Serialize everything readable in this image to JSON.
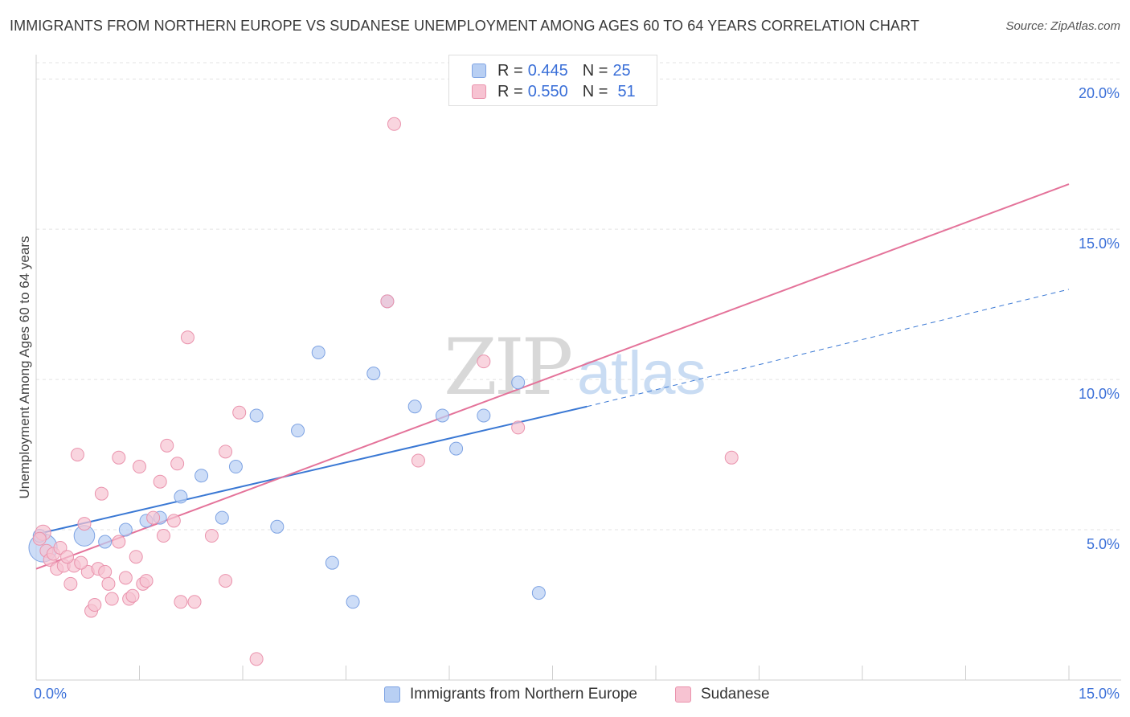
{
  "title": "IMMIGRANTS FROM NORTHERN EUROPE VS SUDANESE UNEMPLOYMENT AMONG AGES 60 TO 64 YEARS CORRELATION CHART",
  "source": "Source: ZipAtlas.com",
  "watermark": {
    "zip": "ZIP",
    "atlas": "atlas"
  },
  "colors": {
    "blue_fill": "#b8cff3",
    "blue_stroke": "#7ea3e3",
    "blue_line": "#3a78d4",
    "pink_fill": "#f7c3d2",
    "pink_stroke": "#ea93ad",
    "pink_line": "#e4739a",
    "tick_label": "#3a6fd8"
  },
  "legend": {
    "rows": [
      {
        "r_label": "R = ",
        "r_value": "0.445",
        "n_label": "N = ",
        "n_value": "25"
      },
      {
        "r_label": "R = ",
        "r_value": "0.550",
        "n_label": "N = ",
        "n_value": "51"
      }
    ]
  },
  "bottom_legend": {
    "series1": "Immigrants from Northern Europe",
    "series2": "Sudanese"
  },
  "chart_data": {
    "type": "scatter",
    "title": "IMMIGRANTS FROM NORTHERN EUROPE VS SUDANESE UNEMPLOYMENT AMONG AGES 60 TO 64 YEARS CORRELATION CHART",
    "xlabel": "",
    "ylabel": "Unemployment Among Ages 60 to 64 years",
    "xlim": [
      0,
      15
    ],
    "ylim": [
      0,
      20.5
    ],
    "x_tick_labels": [
      "0.0%",
      "15.0%"
    ],
    "x_tick_values": [
      0,
      15
    ],
    "y_tick_labels": [
      "5.0%",
      "10.0%",
      "15.0%",
      "20.0%"
    ],
    "y_tick_values": [
      5,
      10,
      15,
      20
    ],
    "grid": true,
    "series": [
      {
        "name": "Immigrants from Northern Europe",
        "R": 0.445,
        "N": 25,
        "points": [
          [
            0.1,
            4.4,
            2.2
          ],
          [
            0.7,
            4.8,
            1.6
          ],
          [
            1.0,
            4.6,
            1
          ],
          [
            1.3,
            5.0,
            1
          ],
          [
            1.6,
            5.3,
            1
          ],
          [
            1.8,
            5.4,
            1
          ],
          [
            2.1,
            6.1,
            1
          ],
          [
            2.4,
            6.8,
            1
          ],
          [
            2.7,
            5.4,
            1
          ],
          [
            2.9,
            7.1,
            1
          ],
          [
            3.2,
            8.8,
            1
          ],
          [
            3.5,
            5.1,
            1
          ],
          [
            3.8,
            8.3,
            1
          ],
          [
            4.1,
            10.9,
            1
          ],
          [
            4.3,
            3.9,
            1
          ],
          [
            4.6,
            2.6,
            1
          ],
          [
            4.9,
            10.2,
            1
          ],
          [
            5.1,
            12.6,
            1
          ],
          [
            5.5,
            9.1,
            1
          ],
          [
            5.9,
            8.8,
            1
          ],
          [
            6.1,
            7.7,
            1
          ],
          [
            6.5,
            8.8,
            1
          ],
          [
            7.0,
            9.9,
            1
          ],
          [
            7.3,
            2.9,
            1
          ],
          [
            0.05,
            4.8,
            1
          ]
        ],
        "trend": {
          "x1": 0,
          "y1": 4.85,
          "x2": 8.0,
          "y2": 9.1,
          "dash_to_x": 15,
          "dash_to_y": 13.0
        }
      },
      {
        "name": "Sudanese",
        "R": 0.55,
        "N": 51,
        "points": [
          [
            0.1,
            4.9,
            1.2
          ],
          [
            0.15,
            4.3,
            1
          ],
          [
            0.2,
            4.0,
            1
          ],
          [
            0.25,
            4.2,
            1
          ],
          [
            0.3,
            3.7,
            1
          ],
          [
            0.35,
            4.4,
            1
          ],
          [
            0.4,
            3.8,
            1
          ],
          [
            0.5,
            3.2,
            1
          ],
          [
            0.55,
            3.8,
            1
          ],
          [
            0.6,
            7.5,
            1
          ],
          [
            0.7,
            5.2,
            1
          ],
          [
            0.75,
            3.6,
            1
          ],
          [
            0.8,
            2.3,
            1
          ],
          [
            0.85,
            2.5,
            1
          ],
          [
            0.9,
            3.7,
            1
          ],
          [
            0.95,
            6.2,
            1
          ],
          [
            1.0,
            3.6,
            1
          ],
          [
            1.05,
            3.2,
            1
          ],
          [
            1.1,
            2.7,
            1
          ],
          [
            1.2,
            4.6,
            1
          ],
          [
            1.2,
            7.4,
            1
          ],
          [
            1.3,
            3.4,
            1
          ],
          [
            1.35,
            2.7,
            1
          ],
          [
            1.4,
            2.8,
            1
          ],
          [
            1.45,
            4.1,
            1
          ],
          [
            1.5,
            7.1,
            1
          ],
          [
            1.55,
            3.2,
            1
          ],
          [
            1.6,
            3.3,
            1
          ],
          [
            1.7,
            5.4,
            1
          ],
          [
            1.8,
            6.6,
            1
          ],
          [
            1.85,
            4.8,
            1
          ],
          [
            1.9,
            7.8,
            1
          ],
          [
            2.0,
            5.3,
            1
          ],
          [
            2.05,
            7.2,
            1
          ],
          [
            2.1,
            2.6,
            1
          ],
          [
            2.2,
            11.4,
            1
          ],
          [
            2.3,
            2.6,
            1
          ],
          [
            2.55,
            4.8,
            1
          ],
          [
            2.75,
            7.6,
            1
          ],
          [
            2.75,
            3.3,
            1
          ],
          [
            2.95,
            8.9,
            1
          ],
          [
            3.2,
            0.7,
            1
          ],
          [
            5.1,
            12.6,
            1
          ],
          [
            5.2,
            18.5,
            1
          ],
          [
            5.55,
            7.3,
            1
          ],
          [
            6.5,
            10.6,
            1
          ],
          [
            7.0,
            8.4,
            1
          ],
          [
            10.1,
            7.4,
            1
          ],
          [
            0.05,
            4.7,
            1
          ],
          [
            0.45,
            4.1,
            1
          ],
          [
            0.65,
            3.9,
            1
          ]
        ],
        "trend": {
          "x1": 0,
          "y1": 3.7,
          "x2": 15,
          "y2": 16.5
        }
      }
    ]
  }
}
